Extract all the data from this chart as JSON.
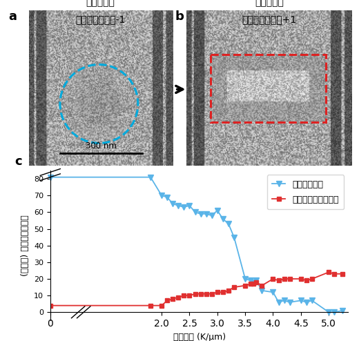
{
  "title_a": "熱流印加前",
  "title_b": "熱流印加後",
  "label_a_text": "トポロジカル数",
  "label_a_num": "-1",
  "label_b_text": "トポロジカル数",
  "label_b_num": "+1",
  "scale_bar_text": "300 nm",
  "panel_a_label": "a",
  "panel_b_label": "b",
  "panel_c_label": "c",
  "xlabel": "温度勾配 (K/μm)",
  "ylabel": "(アンチ) スキルミオン数",
  "legend_skyrmion": "スキルミオン",
  "legend_antiskyrmion": "アンチスキルミオン",
  "skyrmion_color": "#5ab4e8",
  "antiskyrmion_color": "#e03030",
  "circle_color": "#00aadd",
  "rect_color": "#dd2222",
  "ylim": [
    -5,
    85
  ],
  "yticks": [
    0,
    10,
    20,
    30,
    40,
    50,
    60,
    70,
    80
  ],
  "skyrmion_x": [
    0.0,
    1.8,
    2.0,
    2.1,
    2.2,
    2.3,
    2.4,
    2.5,
    2.6,
    2.7,
    2.8,
    2.9,
    3.0,
    3.1,
    3.2,
    3.3,
    3.5,
    3.6,
    3.65,
    3.7,
    3.8,
    4.0,
    4.1,
    4.2,
    4.3,
    4.5,
    4.6,
    4.7,
    5.0,
    5.1,
    5.25
  ],
  "skyrmion_y": [
    81,
    81,
    70,
    69,
    65,
    64,
    63,
    64,
    60,
    59,
    59,
    58,
    61,
    56,
    53,
    45,
    20,
    19,
    18,
    19,
    13,
    12,
    6,
    7,
    6,
    7,
    6,
    7,
    0,
    0,
    1
  ],
  "antiskyrmion_x": [
    0.0,
    1.8,
    2.0,
    2.1,
    2.2,
    2.3,
    2.4,
    2.5,
    2.6,
    2.7,
    2.8,
    2.9,
    3.0,
    3.1,
    3.2,
    3.3,
    3.5,
    3.6,
    3.65,
    3.7,
    3.8,
    4.0,
    4.1,
    4.2,
    4.3,
    4.5,
    4.6,
    4.7,
    5.0,
    5.1,
    5.25
  ],
  "antiskyrmion_y": [
    4,
    4,
    4,
    7,
    8,
    9,
    10,
    10,
    11,
    11,
    11,
    11,
    12,
    12,
    13,
    15,
    16,
    17,
    17,
    18,
    16,
    20,
    19,
    20,
    20,
    20,
    19,
    20,
    24,
    23,
    23
  ],
  "xticks": [
    0,
    2.0,
    2.5,
    3.0,
    3.5,
    4.0,
    4.5,
    5.0
  ],
  "xticklabels": [
    "0",
    "2.0",
    "2.5",
    "3.0",
    "3.5",
    "4.0",
    "4.5",
    "5.0"
  ],
  "xlim": [
    0,
    5.35
  ],
  "arrow_color": "black"
}
